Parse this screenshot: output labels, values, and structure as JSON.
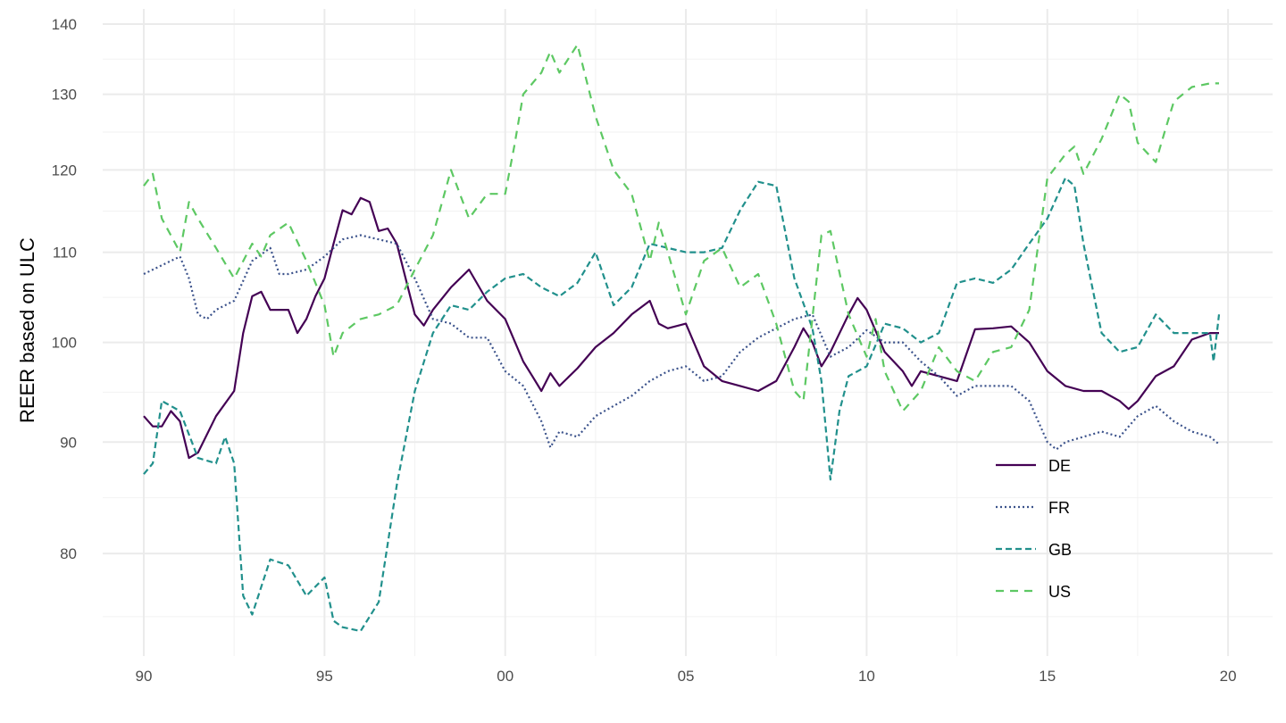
{
  "chart_data": {
    "type": "line",
    "title": "",
    "xlabel": "",
    "ylabel": "REER based on ULC",
    "y_scale": "log",
    "ylim": [
      72,
      142
    ],
    "xlim": [
      1988.9,
      2021.2
    ],
    "x_ticks": [
      1990,
      1995,
      2000,
      2005,
      2010,
      2015,
      2020
    ],
    "x_tick_labels": [
      "90",
      "95",
      "00",
      "05",
      "10",
      "15",
      "20"
    ],
    "y_ticks": [
      80,
      90,
      100,
      110,
      120,
      130,
      140
    ],
    "y_tick_labels": [
      "80",
      "90",
      "100",
      "110",
      "120",
      "130",
      "140"
    ],
    "grid": true,
    "legend_position": "bottom-right",
    "series": [
      {
        "name": "DE",
        "color": "#440154",
        "linetype": "solid",
        "x": [
          1990,
          1990.25,
          1990.5,
          1990.75,
          1991,
          1991.25,
          1991.5,
          1992,
          1992.5,
          1992.75,
          1993,
          1993.25,
          1993.5,
          1994,
          1994.25,
          1994.5,
          1994.75,
          1995,
          1995.25,
          1995.5,
          1995.75,
          1996,
          1996.25,
          1996.5,
          1996.75,
          1997,
          1997.5,
          1997.75,
          1998,
          1998.5,
          1999,
          1999.5,
          2000,
          2000.5,
          2000.75,
          2001,
          2001.25,
          2001.5,
          2002,
          2002.5,
          2003,
          2003.5,
          2004,
          2004.25,
          2004.5,
          2005,
          2005.5,
          2006,
          2006.5,
          2007,
          2007.5,
          2008,
          2008.25,
          2008.5,
          2008.75,
          2009,
          2009.5,
          2009.75,
          2010,
          2010.5,
          2011,
          2011.25,
          2011.5,
          2012,
          2012.5,
          2013,
          2013.5,
          2014,
          2014.5,
          2015,
          2015.5,
          2016,
          2016.5,
          2017,
          2017.25,
          2017.5,
          2018,
          2018.5,
          2019,
          2019.5,
          2019.75
        ],
        "y": [
          92.5,
          91.5,
          91.5,
          93,
          92,
          88.5,
          89,
          92.5,
          95,
          101,
          105,
          105.5,
          103.5,
          103.5,
          101,
          102.5,
          105,
          107,
          111,
          115,
          114.5,
          116.5,
          116,
          112.5,
          112.8,
          111,
          103,
          101.8,
          103.5,
          106,
          108,
          104.5,
          102.5,
          98,
          96.5,
          95,
          96.8,
          95.5,
          97.3,
          99.5,
          101,
          103,
          104.5,
          102,
          101.5,
          102,
          97.5,
          96,
          95.5,
          95,
          96,
          99.5,
          101.5,
          100,
          97.5,
          99,
          103,
          104.8,
          103.5,
          99,
          97,
          95.5,
          97,
          96.5,
          96,
          101.4,
          101.5,
          101.7,
          100,
          97,
          95.5,
          95,
          95,
          94,
          93.2,
          94,
          96.5,
          97.5,
          100.3,
          101,
          101
        ]
      },
      {
        "name": "FR",
        "color": "#3b528b",
        "linetype": "dotted",
        "x": [
          1990,
          1990.5,
          1991,
          1991.25,
          1991.5,
          1991.75,
          1992,
          1992.5,
          1993,
          1993.5,
          1993.75,
          1994,
          1994.5,
          1995,
          1995.5,
          1996,
          1996.5,
          1997,
          1997.5,
          1998,
          1998.5,
          1999,
          1999.5,
          2000,
          2000.5,
          2001,
          2001.25,
          2001.5,
          2002,
          2002.5,
          2003,
          2003.5,
          2004,
          2004.5,
          2005,
          2005.5,
          2006,
          2006.5,
          2007,
          2007.5,
          2008,
          2008.5,
          2009,
          2009.5,
          2010,
          2010.5,
          2011,
          2011.5,
          2012,
          2012.5,
          2013,
          2013.5,
          2014,
          2014.5,
          2015,
          2015.25,
          2015.5,
          2016,
          2016.5,
          2017,
          2017.5,
          2018,
          2018.5,
          2019,
          2019.5,
          2019.75
        ],
        "y": [
          107.5,
          108.5,
          109.5,
          107,
          103,
          102.5,
          103.5,
          104.5,
          109,
          110.5,
          107.5,
          107.5,
          108,
          109.5,
          111.5,
          112,
          111.5,
          111,
          107,
          102.5,
          102,
          100.5,
          100.5,
          97,
          95.5,
          92,
          89.5,
          91,
          90.5,
          92.5,
          93.5,
          94.5,
          96,
          97,
          97.5,
          96,
          96.5,
          99,
          100.5,
          101.5,
          102.5,
          103,
          98.5,
          99.5,
          101.3,
          100,
          100,
          98,
          96.5,
          94.5,
          95.5,
          95.5,
          95.5,
          94,
          90,
          89.3,
          90,
          90.5,
          91,
          90.5,
          92.5,
          93.5,
          92,
          91,
          90.5,
          89.8
        ]
      },
      {
        "name": "GB",
        "color": "#21908c",
        "linetype": "dashed",
        "x": [
          1990,
          1990.25,
          1990.5,
          1991,
          1991.5,
          1992,
          1992.25,
          1992.5,
          1992.75,
          1993,
          1993.5,
          1994,
          1994.5,
          1995,
          1995.25,
          1995.5,
          1996,
          1996.5,
          1997,
          1997.5,
          1998,
          1998.5,
          1999,
          1999.5,
          2000,
          2000.5,
          2001,
          2001.5,
          2002,
          2002.5,
          2003,
          2003.5,
          2004,
          2004.5,
          2005,
          2005.5,
          2006,
          2006.5,
          2007,
          2007.5,
          2008,
          2008.5,
          2008.75,
          2009,
          2009.25,
          2009.5,
          2010,
          2010.5,
          2011,
          2011.5,
          2012,
          2012.5,
          2013,
          2013.5,
          2014,
          2014.5,
          2015,
          2015.5,
          2015.75,
          2016,
          2016.5,
          2017,
          2017.5,
          2018,
          2018.5,
          2019,
          2019.5,
          2019.6,
          2019.75
        ],
        "y": [
          87,
          88,
          94,
          93,
          88.5,
          88,
          90.5,
          88,
          76.5,
          75,
          79.5,
          79,
          76.5,
          78,
          74.5,
          74,
          73.7,
          76,
          86,
          95,
          101,
          104,
          103.5,
          105.5,
          107,
          107.5,
          106,
          105,
          106.5,
          110,
          104,
          106,
          111,
          110.5,
          110,
          110,
          110.5,
          115,
          118.5,
          118,
          107,
          101.5,
          96,
          86.5,
          93,
          96.5,
          97.5,
          102,
          101.5,
          100,
          101,
          106.5,
          107,
          106.5,
          108,
          111,
          114,
          119,
          118,
          111,
          101,
          99,
          99.5,
          103,
          101,
          101,
          101,
          98,
          103
        ]
      },
      {
        "name": "US",
        "color": "#5dc863",
        "linetype": "longdash",
        "x": [
          1990,
          1990.25,
          1990.5,
          1991,
          1991.25,
          1991.5,
          1992,
          1992.5,
          1993,
          1993.25,
          1993.5,
          1994,
          1994.5,
          1995,
          1995.25,
          1995.5,
          1996,
          1996.5,
          1997,
          1997.5,
          1998,
          1998.5,
          1999,
          1999.5,
          2000,
          2000.25,
          2000.5,
          2001,
          2001.25,
          2001.5,
          2002,
          2002.5,
          2003,
          2003.5,
          2004,
          2004.25,
          2004.5,
          2005,
          2005.5,
          2006,
          2006.5,
          2007,
          2007.5,
          2008,
          2008.25,
          2008.75,
          2009,
          2009.5,
          2010,
          2010.25,
          2010.5,
          2011,
          2011.5,
          2012,
          2012.5,
          2013,
          2013.5,
          2014,
          2014.5,
          2015,
          2015.5,
          2015.75,
          2016,
          2016.5,
          2017,
          2017.25,
          2017.5,
          2018,
          2018.25,
          2018.5,
          2019,
          2019.5,
          2019.75
        ],
        "y": [
          118,
          119.5,
          114,
          110,
          116,
          114,
          110.5,
          107,
          111,
          109.5,
          112,
          113.5,
          109,
          104,
          98.5,
          101,
          102.5,
          103,
          104,
          108,
          112,
          120,
          114,
          117,
          117,
          123,
          130,
          133,
          136,
          133,
          137,
          127,
          120,
          117,
          109,
          113.5,
          110,
          103,
          109,
          110.5,
          106,
          107.5,
          102,
          95,
          94,
          112,
          112.5,
          103,
          98.5,
          102.5,
          97,
          93,
          95,
          99.5,
          97,
          96,
          99,
          99.5,
          103.5,
          119,
          122,
          123,
          119.5,
          124,
          130,
          129,
          123.5,
          121,
          125,
          129,
          131,
          131.5,
          131.5
        ]
      }
    ]
  }
}
